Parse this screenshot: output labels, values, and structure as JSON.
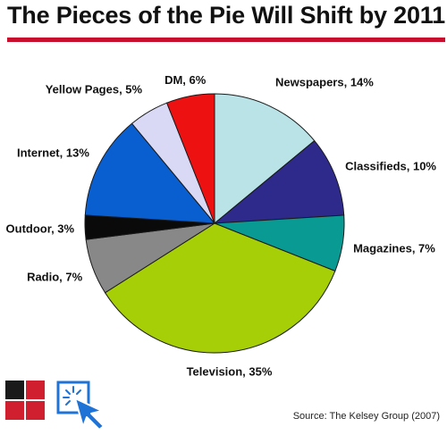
{
  "page": {
    "title": "The Pieces of the Pie Will Shift by 2011",
    "source": "Source: The Kelsey Group (2007)"
  },
  "colors": {
    "accent": "#c8102e",
    "logo_dark": "#1a1a1a",
    "logo_red": "#d01f2e",
    "icon_blue": "#1f73d6"
  },
  "icons": [
    "logo-squares-icon",
    "click-cursor-icon"
  ],
  "chart_data": {
    "type": "pie",
    "title": "The Pieces of the Pie Will Shift by 2011",
    "start_angle_deg": 0,
    "direction": "clockwise",
    "slices": [
      {
        "label": "Newspapers, 14%",
        "category": "Newspapers",
        "value": 14,
        "color": "#b9e3e6"
      },
      {
        "label": "Classifieds, 10%",
        "category": "Classifieds",
        "value": 10,
        "color": "#2e2a8c"
      },
      {
        "label": "Magazines, 7%",
        "category": "Magazines",
        "value": 7,
        "color": "#0a9a94"
      },
      {
        "label": "Television, 35%",
        "category": "Television",
        "value": 35,
        "color": "#a6cf08"
      },
      {
        "label": "Radio, 7%",
        "category": "Radio",
        "value": 7,
        "color": "#888888"
      },
      {
        "label": "Outdoor, 3%",
        "category": "Outdoor",
        "value": 3,
        "color": "#0a0a0a"
      },
      {
        "label": "Internet, 13%",
        "category": "Internet",
        "value": 13,
        "color": "#0a5fd0"
      },
      {
        "label": "Yellow Pages, 5%",
        "category": "Yellow Pages",
        "value": 5,
        "color": "#d9d9f5"
      },
      {
        "label": "DM, 6%",
        "category": "DM",
        "value": 6,
        "color": "#ee1111"
      }
    ]
  }
}
